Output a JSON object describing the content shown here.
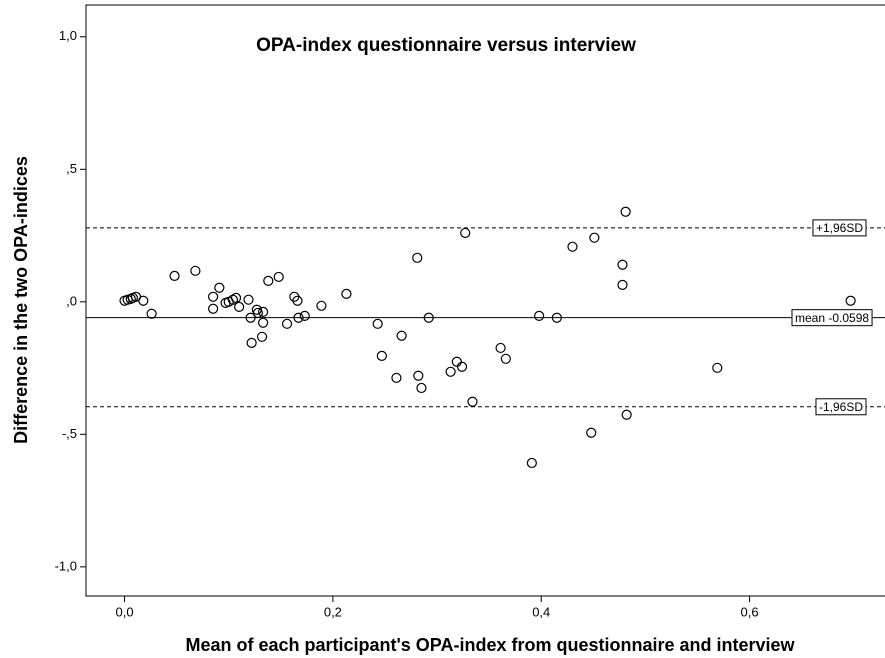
{
  "chart_data": {
    "type": "scatter",
    "title": "OPA-index questionnaire versus interview",
    "x_label": "Mean of each participant's OPA-index from questionnaire and interview",
    "y_label": "Difference in the two OPA-indices",
    "xlim": [
      -0.037,
      0.73
    ],
    "ylim": [
      -1.11,
      1.12
    ],
    "xticks": [
      {
        "value": 0,
        "label": "0,0"
      },
      {
        "value": 0.2,
        "label": "0,2"
      },
      {
        "value": 0.4,
        "label": "0,4"
      },
      {
        "value": 0.6,
        "label": "0,6"
      }
    ],
    "yticks": [
      {
        "value": 1,
        "label": "1,0"
      },
      {
        "value": 0.5,
        "label": ",5"
      },
      {
        "value": 0,
        "label": ",0"
      },
      {
        "value": -0.5,
        "label": "-,5"
      },
      {
        "value": -1,
        "label": "-1,0"
      }
    ],
    "reference_lines": [
      {
        "value": 0.279,
        "label": "+1,96SD",
        "style": "dashed"
      },
      {
        "value": -0.0598,
        "label": "mean -0.0598",
        "style": "solid"
      },
      {
        "value": -0.396,
        "label": "-1,96SD",
        "style": "dashed"
      }
    ],
    "color": "#000000",
    "x": [
      0,
      0.003,
      0.006,
      0.008,
      0.011,
      0.018,
      0.026,
      0.048,
      0.068,
      0.085,
      0.085,
      0.091,
      0.097,
      0.1,
      0.104,
      0.107,
      0.11,
      0.119,
      0.121,
      0.122,
      0.127,
      0.128,
      0.133,
      0.133,
      0.132,
      0.138,
      0.148,
      0.156,
      0.163,
      0.166,
      0.167,
      0.173,
      0.189,
      0.213,
      0.243,
      0.247,
      0.261,
      0.266,
      0.281,
      0.282,
      0.285,
      0.292,
      0.327,
      0.313,
      0.319,
      0.324,
      0.334,
      0.361,
      0.366,
      0.391,
      0.398,
      0.415,
      0.43,
      0.448,
      0.451,
      0.478,
      0.478,
      0.481,
      0.482,
      0.569,
      0.697
    ],
    "values": [
      0.004,
      0.008,
      0.011,
      0.015,
      0.019,
      0.004,
      -0.045,
      0.098,
      0.117,
      0.019,
      -0.026,
      0.053,
      -0.004,
      0,
      0.008,
      0.015,
      -0.019,
      0.008,
      -0.06,
      -0.155,
      -0.03,
      -0.042,
      -0.038,
      -0.079,
      -0.132,
      0.079,
      0.094,
      -0.083,
      0.019,
      0.004,
      -0.06,
      -0.053,
      -0.015,
      0.03,
      -0.083,
      -0.204,
      -0.287,
      -0.128,
      0.166,
      -0.279,
      -0.325,
      -0.06,
      0.26,
      -0.264,
      -0.226,
      -0.245,
      -0.377,
      -0.174,
      -0.215,
      -0.608,
      -0.053,
      -0.06,
      0.208,
      -0.494,
      0.242,
      0.14,
      0.064,
      0.34,
      -0.426,
      -0.249,
      0.004
    ]
  }
}
